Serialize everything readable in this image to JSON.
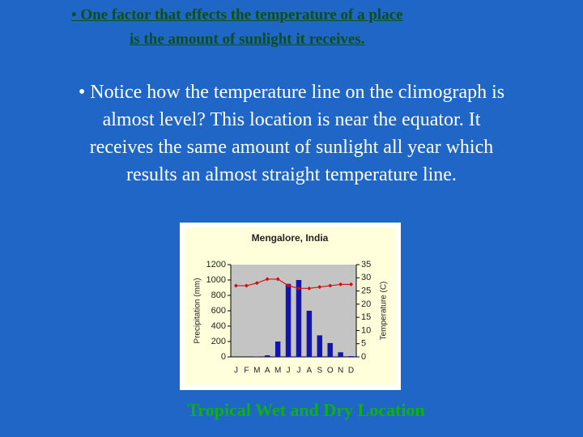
{
  "slide": {
    "heading": [
      "• One factor that effects the temperature of a place",
      "is the amount of sunlight it receives."
    ],
    "body": [
      "• Notice how the temperature line on the climograph is",
      "almost level?  This location is near the equator.  It",
      "receives the same amount of sunlight all year which",
      "results an almost straight temperature line."
    ],
    "caption": "Tropical Wet and Dry Location"
  },
  "chart_data": {
    "type": "bar-line",
    "title": "Mengalore, India",
    "ylabel": "Precipitation (mm)",
    "y2label": "Temperature (C)",
    "categories": [
      "J",
      "F",
      "M",
      "A",
      "M",
      "J",
      "J",
      "A",
      "S",
      "O",
      "N",
      "D"
    ],
    "series": [
      {
        "name": "Precipitation (mm)",
        "type": "bar",
        "color": "#1414a8",
        "values": [
          0,
          0,
          5,
          20,
          200,
          950,
          1000,
          600,
          280,
          180,
          60,
          10
        ]
      },
      {
        "name": "Temperature (C)",
        "type": "line",
        "axis": "y2",
        "color": "#d01010",
        "values": [
          27,
          27,
          28,
          29.5,
          29.5,
          27,
          26,
          26,
          26.5,
          27,
          27.5,
          27.5
        ]
      }
    ],
    "ylim": [
      0,
      1200
    ],
    "yticks": [
      0,
      200,
      400,
      600,
      800,
      1000,
      1200
    ],
    "y2lim": [
      0,
      35
    ],
    "y2ticks": [
      0,
      5,
      10,
      15,
      20,
      25,
      30,
      35
    ],
    "grid": false
  }
}
